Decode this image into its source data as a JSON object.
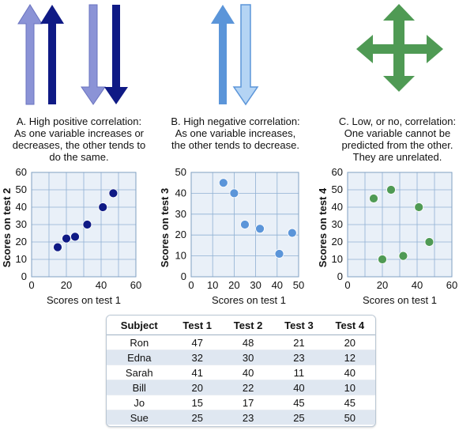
{
  "panels": [
    {
      "caption": [
        "A. High positive correlation:",
        "As one variable increases or",
        "decreases, the other tends to",
        "do the same."
      ]
    },
    {
      "caption": [
        "B. High negative correlation:",
        "As one variable increases,",
        "the other tends to decrease."
      ]
    },
    {
      "caption": [
        "C. Low, or no, correlation:",
        "One variable cannot be",
        "predicted from the other.",
        "They are unrelated."
      ]
    }
  ],
  "colors": {
    "a_dark": "#0f1a85",
    "a_light": "#8b93d6",
    "b_mid": "#5b95d9",
    "b_light": "#b4d4f4",
    "c_green": "#4f9a54",
    "plot_bg": "#e9f0f8",
    "grid": "#8fb0d3"
  },
  "icons": [
    "up-down-arrows-icon",
    "up-down-arrows-icon",
    "four-way-arrow-icon"
  ],
  "chart_data": [
    {
      "type": "scatter",
      "xlabel": "Scores on test 1",
      "ylabel": "Scores on test 2",
      "xlim": [
        0,
        60
      ],
      "ylim": [
        0,
        60
      ],
      "xticks": [
        "0",
        "20",
        "40",
        "60"
      ],
      "yticks": [
        "60",
        "50",
        "40",
        "30",
        "20",
        "10",
        "0"
      ],
      "x": [
        47,
        32,
        41,
        20,
        15,
        25
      ],
      "y": [
        48,
        30,
        40,
        22,
        17,
        23
      ],
      "color": "#0f1a85",
      "grid": true
    },
    {
      "type": "scatter",
      "xlabel": "Scores on test 1",
      "ylabel": "Scores on test 3",
      "xlim": [
        0,
        50
      ],
      "ylim": [
        0,
        50
      ],
      "xticks": [
        "0",
        "10",
        "20",
        "30",
        "40",
        "50"
      ],
      "yticks": [
        "50",
        "40",
        "30",
        "20",
        "10",
        "0"
      ],
      "x": [
        47,
        32,
        41,
        20,
        15,
        25
      ],
      "y": [
        21,
        23,
        11,
        40,
        45,
        25
      ],
      "color": "#5b95d9",
      "grid": true
    },
    {
      "type": "scatter",
      "xlabel": "Scores on test 1",
      "ylabel": "Scores on test 4",
      "xlim": [
        0,
        60
      ],
      "ylim": [
        0,
        60
      ],
      "xticks": [
        "0",
        "20",
        "40",
        "60"
      ],
      "yticks": [
        "60",
        "50",
        "40",
        "30",
        "20",
        "10",
        "0"
      ],
      "x": [
        47,
        32,
        41,
        20,
        15,
        25
      ],
      "y": [
        20,
        12,
        40,
        10,
        45,
        50
      ],
      "color": "#4f9a54",
      "grid": true
    }
  ],
  "table": {
    "headers": [
      "Subject",
      "Test 1",
      "Test 2",
      "Test 3",
      "Test 4"
    ],
    "rows": [
      [
        "Ron",
        "47",
        "48",
        "21",
        "20"
      ],
      [
        "Edna",
        "32",
        "30",
        "23",
        "12"
      ],
      [
        "Sarah",
        "41",
        "40",
        "11",
        "40"
      ],
      [
        "Bill",
        "20",
        "22",
        "40",
        "10"
      ],
      [
        "Jo",
        "15",
        "17",
        "45",
        "45"
      ],
      [
        "Sue",
        "25",
        "23",
        "25",
        "50"
      ]
    ]
  }
}
